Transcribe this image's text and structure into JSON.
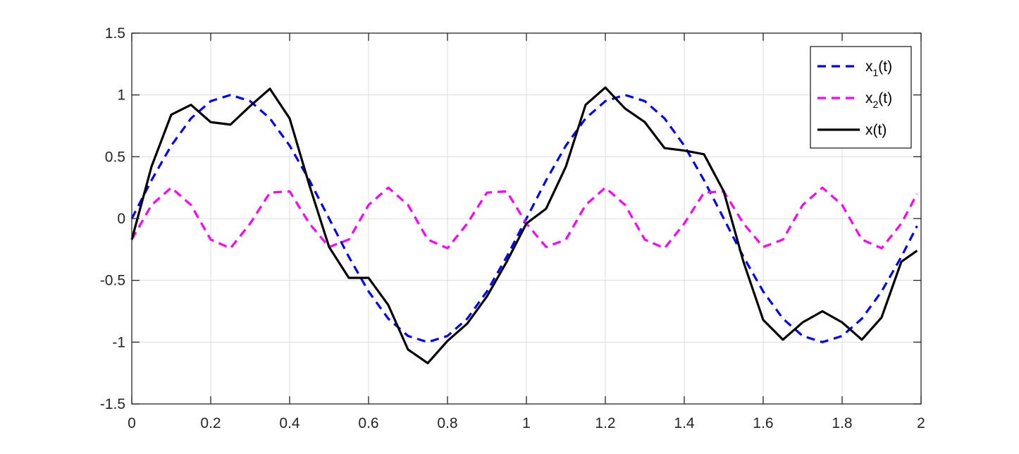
{
  "chart_data": {
    "type": "line",
    "title": "",
    "xlabel": "",
    "ylabel": "",
    "xlim": [
      0,
      2
    ],
    "ylim": [
      -1.5,
      1.5
    ],
    "xticks": [
      0,
      0.2,
      0.4,
      0.6,
      0.8,
      1,
      1.2,
      1.4,
      1.6,
      1.8,
      2
    ],
    "xtick_labels": [
      "0",
      "0.2",
      "0.4",
      "0.6",
      "0.8",
      "1",
      "1.2",
      "1.4",
      "1.6",
      "1.8",
      "2"
    ],
    "yticks": [
      1.5,
      1,
      0.5,
      0,
      -0.5,
      -1,
      -1.5
    ],
    "ytick_labels": [
      "1.5",
      "1",
      "0.5",
      "0",
      "-0.5",
      "-1",
      "-1.5"
    ],
    "grid": true,
    "legend_position": "top-right",
    "x": [
      0,
      0.05,
      0.1,
      0.15,
      0.2,
      0.25,
      0.3,
      0.35,
      0.4,
      0.45,
      0.5,
      0.55,
      0.6,
      0.65,
      0.7,
      0.75,
      0.8,
      0.85,
      0.9,
      0.95,
      1,
      1.05,
      1.1,
      1.15,
      1.2,
      1.25,
      1.3,
      1.35,
      1.4,
      1.45,
      1.5,
      1.55,
      1.6,
      1.65,
      1.7,
      1.75,
      1.8,
      1.85,
      1.9,
      1.95,
      1.99
    ],
    "series": [
      {
        "name": "x",
        "sub": "1",
        "suffix": "(t)",
        "color": "#0000ff",
        "style": "dashed",
        "values": [
          0,
          0.31,
          0.59,
          0.81,
          0.95,
          1,
          0.95,
          0.81,
          0.59,
          0.31,
          0,
          -0.31,
          -0.59,
          -0.81,
          -0.95,
          -1,
          -0.95,
          -0.81,
          -0.59,
          -0.31,
          0,
          0.31,
          0.59,
          0.81,
          0.95,
          1,
          0.95,
          0.81,
          0.59,
          0.31,
          0,
          -0.31,
          -0.59,
          -0.81,
          -0.95,
          -1,
          -0.95,
          -0.81,
          -0.59,
          -0.31,
          -0.06
        ]
      },
      {
        "name": "x",
        "sub": "2",
        "suffix": "(t)",
        "color": "#ff00ff",
        "style": "dashed",
        "values": [
          -0.17,
          0.11,
          0.25,
          0.11,
          -0.17,
          -0.24,
          -0.04,
          0.21,
          0.22,
          -0.04,
          -0.23,
          -0.17,
          0.11,
          0.25,
          0.11,
          -0.17,
          -0.24,
          -0.04,
          0.21,
          0.22,
          -0.04,
          -0.23,
          -0.17,
          0.11,
          0.25,
          0.11,
          -0.17,
          -0.24,
          -0.04,
          0.21,
          0.22,
          -0.04,
          -0.23,
          -0.17,
          0.11,
          0.25,
          0.11,
          -0.17,
          -0.24,
          -0.04,
          0.2
        ]
      },
      {
        "name": "x(t)",
        "sub": "",
        "suffix": "",
        "color": "#000000",
        "style": "solid",
        "values": [
          -0.17,
          0.42,
          0.84,
          0.92,
          0.78,
          0.76,
          0.91,
          1.05,
          0.81,
          0.27,
          -0.23,
          -0.48,
          -0.48,
          -0.7,
          -1.06,
          -1.17,
          -0.99,
          -0.85,
          -0.63,
          -0.35,
          -0.04,
          0.08,
          0.42,
          0.92,
          1.06,
          0.89,
          0.78,
          0.57,
          0.55,
          0.52,
          0.22,
          -0.35,
          -0.82,
          -0.98,
          -0.84,
          -0.75,
          -0.84,
          -0.98,
          -0.8,
          -0.35,
          -0.26
        ]
      }
    ]
  }
}
